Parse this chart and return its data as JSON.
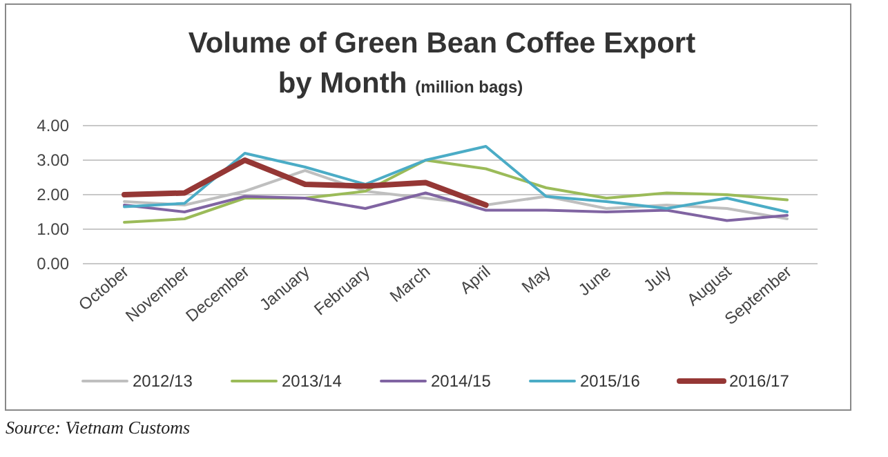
{
  "chart_data": {
    "type": "line",
    "title": "Volume of Green Bean Coffee Export\nby Month",
    "subtitle": "(million bags)",
    "categories": [
      "October",
      "November",
      "December",
      "January",
      "February",
      "March",
      "April",
      "May",
      "June",
      "July",
      "August",
      "September"
    ],
    "ylim": [
      0,
      4
    ],
    "yticks": [
      {
        "value": 0,
        "label": "0.00"
      },
      {
        "value": 1,
        "label": "1.00"
      },
      {
        "value": 2,
        "label": "2.00"
      },
      {
        "value": 3,
        "label": "3.00"
      },
      {
        "value": 4,
        "label": "4.00"
      }
    ],
    "grid": "y",
    "legend": "bottom",
    "marker": "none",
    "line_style": "solid",
    "series": [
      {
        "name": "2012/13",
        "color": "#bfbfbf",
        "values": [
          1.8,
          1.7,
          2.1,
          2.7,
          2.1,
          1.9,
          1.7,
          1.95,
          1.6,
          1.7,
          1.6,
          1.3
        ]
      },
      {
        "name": "2013/14",
        "color": "#9bbb59",
        "values": [
          1.2,
          1.3,
          1.9,
          1.9,
          2.1,
          3.0,
          2.75,
          2.2,
          1.9,
          2.05,
          2.0,
          1.85
        ]
      },
      {
        "name": "2014/15",
        "color": "#8064a2",
        "values": [
          1.7,
          1.5,
          1.95,
          1.9,
          1.6,
          2.05,
          1.55,
          1.55,
          1.5,
          1.55,
          1.25,
          1.4
        ]
      },
      {
        "name": "2015/16",
        "color": "#4bacc6",
        "values": [
          1.65,
          1.75,
          3.2,
          2.8,
          2.3,
          3.0,
          3.4,
          1.95,
          1.8,
          1.6,
          1.9,
          1.5
        ]
      },
      {
        "name": "2016/17",
        "color": "#953735",
        "values": [
          2.0,
          2.05,
          3.0,
          2.3,
          2.25,
          2.35,
          1.7,
          null,
          null,
          null,
          null,
          null
        ]
      }
    ],
    "annotations": [
      "Source: Vietnam Customs"
    ]
  }
}
